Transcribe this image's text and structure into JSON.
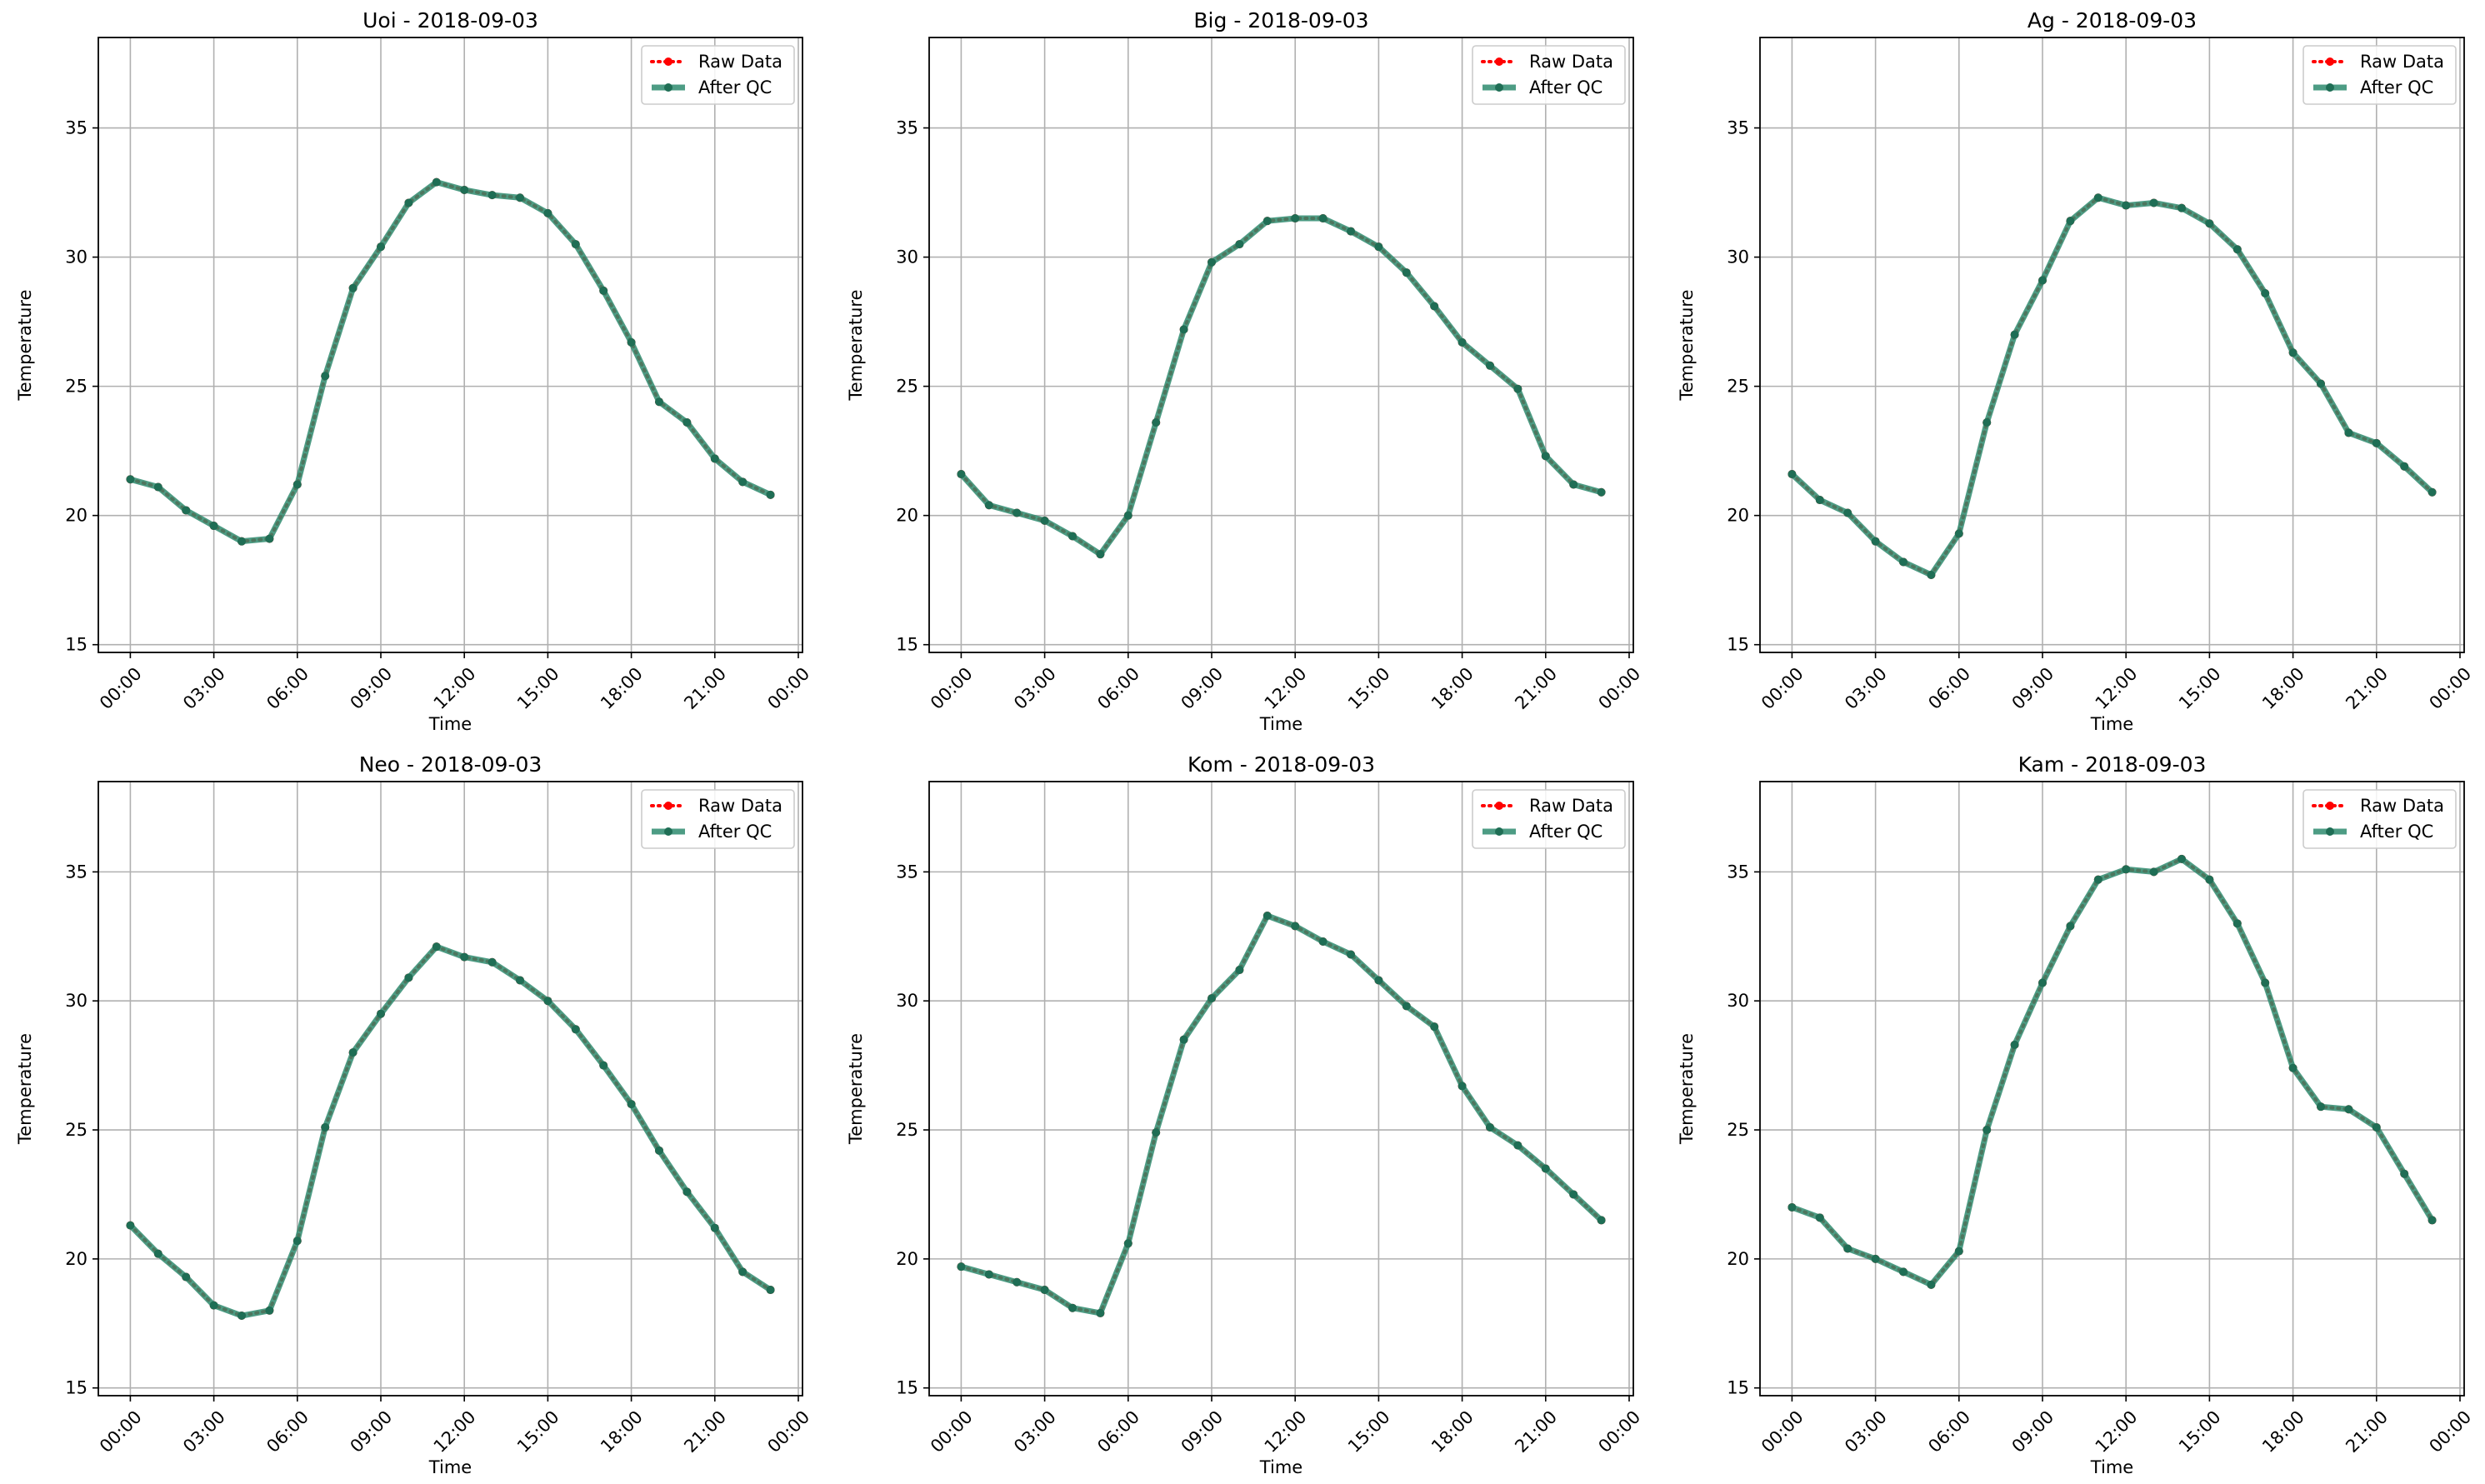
{
  "colors": {
    "raw": "#ff0000",
    "qc": "#2e8b6e",
    "qc_marker": "#1f6e55",
    "grid": "#b0b0b0",
    "axes": "#000000",
    "legend_border": "#cccccc"
  },
  "legend": {
    "placement": "top-right",
    "raw_label": "Raw Data",
    "qc_label": "After QC"
  },
  "chart_data": [
    {
      "type": "line",
      "title": "Uoi - 2018-09-03",
      "xlabel": "Time",
      "ylabel": "Temperature",
      "xlim": [
        -1.15,
        24.15
      ],
      "ylim": [
        14.7,
        38.5
      ],
      "grid": true,
      "x": [
        0,
        1,
        2,
        3,
        4,
        5,
        6,
        7,
        8,
        9,
        10,
        11,
        12,
        13,
        14,
        15,
        16,
        17,
        18,
        19,
        20,
        21,
        22,
        23
      ],
      "x_ticks": [
        0,
        3,
        6,
        9,
        12,
        15,
        18,
        21,
        24
      ],
      "x_tick_labels": [
        "00:00",
        "03:00",
        "06:00",
        "09:00",
        "12:00",
        "15:00",
        "18:00",
        "21:00",
        "00:00"
      ],
      "y_ticks": [
        15,
        20,
        25,
        30,
        35
      ],
      "y_tick_labels": [
        "15",
        "20",
        "25",
        "30",
        "35"
      ],
      "series": [
        {
          "name": "Raw Data",
          "values": [
            21.4,
            21.1,
            20.2,
            19.6,
            19.0,
            19.1,
            21.2,
            25.4,
            28.8,
            30.4,
            32.1,
            32.9,
            32.6,
            32.4,
            32.3,
            31.7,
            30.5,
            28.7,
            26.7,
            24.4,
            23.6,
            22.2,
            21.3,
            20.8
          ]
        },
        {
          "name": "After QC",
          "values": [
            21.4,
            21.1,
            20.2,
            19.6,
            19.0,
            19.1,
            21.2,
            25.4,
            28.8,
            30.4,
            32.1,
            32.9,
            32.6,
            32.4,
            32.3,
            31.7,
            30.5,
            28.7,
            26.7,
            24.4,
            23.6,
            22.2,
            21.3,
            20.8
          ]
        }
      ]
    },
    {
      "type": "line",
      "title": "Big - 2018-09-03",
      "xlabel": "Time",
      "ylabel": "Temperature",
      "xlim": [
        -1.15,
        24.15
      ],
      "ylim": [
        14.7,
        38.5
      ],
      "grid": true,
      "x": [
        0,
        1,
        2,
        3,
        4,
        5,
        6,
        7,
        8,
        9,
        10,
        11,
        12,
        13,
        14,
        15,
        16,
        17,
        18,
        19,
        20,
        21,
        22,
        23
      ],
      "x_ticks": [
        0,
        3,
        6,
        9,
        12,
        15,
        18,
        21,
        24
      ],
      "x_tick_labels": [
        "00:00",
        "03:00",
        "06:00",
        "09:00",
        "12:00",
        "15:00",
        "18:00",
        "21:00",
        "00:00"
      ],
      "y_ticks": [
        15,
        20,
        25,
        30,
        35
      ],
      "y_tick_labels": [
        "15",
        "20",
        "25",
        "30",
        "35"
      ],
      "series": [
        {
          "name": "Raw Data",
          "values": [
            21.6,
            20.4,
            20.1,
            19.8,
            19.2,
            18.5,
            20.0,
            23.6,
            27.2,
            29.8,
            30.5,
            31.4,
            31.5,
            31.5,
            31.0,
            30.4,
            29.4,
            28.1,
            26.7,
            25.8,
            24.9,
            22.3,
            21.2,
            20.9
          ]
        },
        {
          "name": "After QC",
          "values": [
            21.6,
            20.4,
            20.1,
            19.8,
            19.2,
            18.5,
            20.0,
            23.6,
            27.2,
            29.8,
            30.5,
            31.4,
            31.5,
            31.5,
            31.0,
            30.4,
            29.4,
            28.1,
            26.7,
            25.8,
            24.9,
            22.3,
            21.2,
            20.9
          ]
        }
      ]
    },
    {
      "type": "line",
      "title": "Ag - 2018-09-03",
      "xlabel": "Time",
      "ylabel": "Temperature",
      "xlim": [
        -1.15,
        24.15
      ],
      "ylim": [
        14.7,
        38.5
      ],
      "grid": true,
      "x": [
        0,
        1,
        2,
        3,
        4,
        5,
        6,
        7,
        8,
        9,
        10,
        11,
        12,
        13,
        14,
        15,
        16,
        17,
        18,
        19,
        20,
        21,
        22,
        23
      ],
      "x_ticks": [
        0,
        3,
        6,
        9,
        12,
        15,
        18,
        21,
        24
      ],
      "x_tick_labels": [
        "00:00",
        "03:00",
        "06:00",
        "09:00",
        "12:00",
        "15:00",
        "18:00",
        "21:00",
        "00:00"
      ],
      "y_ticks": [
        15,
        20,
        25,
        30,
        35
      ],
      "y_tick_labels": [
        "15",
        "20",
        "25",
        "30",
        "35"
      ],
      "series": [
        {
          "name": "Raw Data",
          "values": [
            21.6,
            20.6,
            20.1,
            19.0,
            18.2,
            17.7,
            19.3,
            23.6,
            27.0,
            29.1,
            31.4,
            32.3,
            32.0,
            32.1,
            31.9,
            31.3,
            30.3,
            28.6,
            26.3,
            25.1,
            23.2,
            22.8,
            21.9,
            20.9
          ]
        },
        {
          "name": "After QC",
          "values": [
            21.6,
            20.6,
            20.1,
            19.0,
            18.2,
            17.7,
            19.3,
            23.6,
            27.0,
            29.1,
            31.4,
            32.3,
            32.0,
            32.1,
            31.9,
            31.3,
            30.3,
            28.6,
            26.3,
            25.1,
            23.2,
            22.8,
            21.9,
            20.9
          ]
        }
      ]
    },
    {
      "type": "line",
      "title": "Neo - 2018-09-03",
      "xlabel": "Time",
      "ylabel": "Temperature",
      "xlim": [
        -1.15,
        24.15
      ],
      "ylim": [
        14.7,
        38.5
      ],
      "grid": true,
      "x": [
        0,
        1,
        2,
        3,
        4,
        5,
        6,
        7,
        8,
        9,
        10,
        11,
        12,
        13,
        14,
        15,
        16,
        17,
        18,
        19,
        20,
        21,
        22,
        23
      ],
      "x_ticks": [
        0,
        3,
        6,
        9,
        12,
        15,
        18,
        21,
        24
      ],
      "x_tick_labels": [
        "00:00",
        "03:00",
        "06:00",
        "09:00",
        "12:00",
        "15:00",
        "18:00",
        "21:00",
        "00:00"
      ],
      "y_ticks": [
        15,
        20,
        25,
        30,
        35
      ],
      "y_tick_labels": [
        "15",
        "20",
        "25",
        "30",
        "35"
      ],
      "series": [
        {
          "name": "Raw Data",
          "values": [
            21.3,
            20.2,
            19.3,
            18.2,
            17.8,
            18.0,
            20.7,
            25.1,
            28.0,
            29.5,
            30.9,
            32.1,
            31.7,
            31.5,
            30.8,
            30.0,
            28.9,
            27.5,
            26.0,
            24.2,
            22.6,
            21.2,
            19.5,
            18.8
          ]
        },
        {
          "name": "After QC",
          "values": [
            21.3,
            20.2,
            19.3,
            18.2,
            17.8,
            18.0,
            20.7,
            25.1,
            28.0,
            29.5,
            30.9,
            32.1,
            31.7,
            31.5,
            30.8,
            30.0,
            28.9,
            27.5,
            26.0,
            24.2,
            22.6,
            21.2,
            19.5,
            18.8
          ]
        }
      ]
    },
    {
      "type": "line",
      "title": "Kom - 2018-09-03",
      "xlabel": "Time",
      "ylabel": "Temperature",
      "xlim": [
        -1.15,
        24.15
      ],
      "ylim": [
        14.7,
        38.5
      ],
      "grid": true,
      "x": [
        0,
        1,
        2,
        3,
        4,
        5,
        6,
        7,
        8,
        9,
        10,
        11,
        12,
        13,
        14,
        15,
        16,
        17,
        18,
        19,
        20,
        21,
        22,
        23
      ],
      "x_ticks": [
        0,
        3,
        6,
        9,
        12,
        15,
        18,
        21,
        24
      ],
      "x_tick_labels": [
        "00:00",
        "03:00",
        "06:00",
        "09:00",
        "12:00",
        "15:00",
        "18:00",
        "21:00",
        "00:00"
      ],
      "y_ticks": [
        15,
        20,
        25,
        30,
        35
      ],
      "y_tick_labels": [
        "15",
        "20",
        "25",
        "30",
        "35"
      ],
      "series": [
        {
          "name": "Raw Data",
          "values": [
            19.7,
            19.4,
            19.1,
            18.8,
            18.1,
            17.9,
            20.6,
            24.9,
            28.5,
            30.1,
            31.2,
            33.3,
            32.9,
            32.3,
            31.8,
            30.8,
            29.8,
            29.0,
            26.7,
            25.1,
            24.4,
            23.5,
            22.5,
            21.5
          ]
        },
        {
          "name": "After QC",
          "values": [
            19.7,
            19.4,
            19.1,
            18.8,
            18.1,
            17.9,
            20.6,
            24.9,
            28.5,
            30.1,
            31.2,
            33.3,
            32.9,
            32.3,
            31.8,
            30.8,
            29.8,
            29.0,
            26.7,
            25.1,
            24.4,
            23.5,
            22.5,
            21.5
          ]
        }
      ]
    },
    {
      "type": "line",
      "title": "Kam - 2018-09-03",
      "xlabel": "Time",
      "ylabel": "Temperature",
      "xlim": [
        -1.15,
        24.15
      ],
      "ylim": [
        14.7,
        38.5
      ],
      "grid": true,
      "x": [
        0,
        1,
        2,
        3,
        4,
        5,
        6,
        7,
        8,
        9,
        10,
        11,
        12,
        13,
        14,
        15,
        16,
        17,
        18,
        19,
        20,
        21,
        22,
        23
      ],
      "x_ticks": [
        0,
        3,
        6,
        9,
        12,
        15,
        18,
        21,
        24
      ],
      "x_tick_labels": [
        "00:00",
        "03:00",
        "06:00",
        "09:00",
        "12:00",
        "15:00",
        "18:00",
        "21:00",
        "00:00"
      ],
      "y_ticks": [
        15,
        20,
        25,
        30,
        35
      ],
      "y_tick_labels": [
        "15",
        "20",
        "25",
        "30",
        "35"
      ],
      "series": [
        {
          "name": "Raw Data",
          "values": [
            22.0,
            21.6,
            20.4,
            20.0,
            19.5,
            19.0,
            20.3,
            25.0,
            28.3,
            30.7,
            32.9,
            34.7,
            35.1,
            35.0,
            35.5,
            34.7,
            33.0,
            30.7,
            27.4,
            25.9,
            25.8,
            25.1,
            23.3,
            21.5
          ]
        },
        {
          "name": "After QC",
          "values": [
            22.0,
            21.6,
            20.4,
            20.0,
            19.5,
            19.0,
            20.3,
            25.0,
            28.3,
            30.7,
            32.9,
            34.7,
            35.1,
            35.0,
            35.5,
            34.7,
            33.0,
            30.7,
            27.4,
            25.9,
            25.8,
            25.1,
            23.3,
            21.5
          ]
        }
      ]
    }
  ]
}
